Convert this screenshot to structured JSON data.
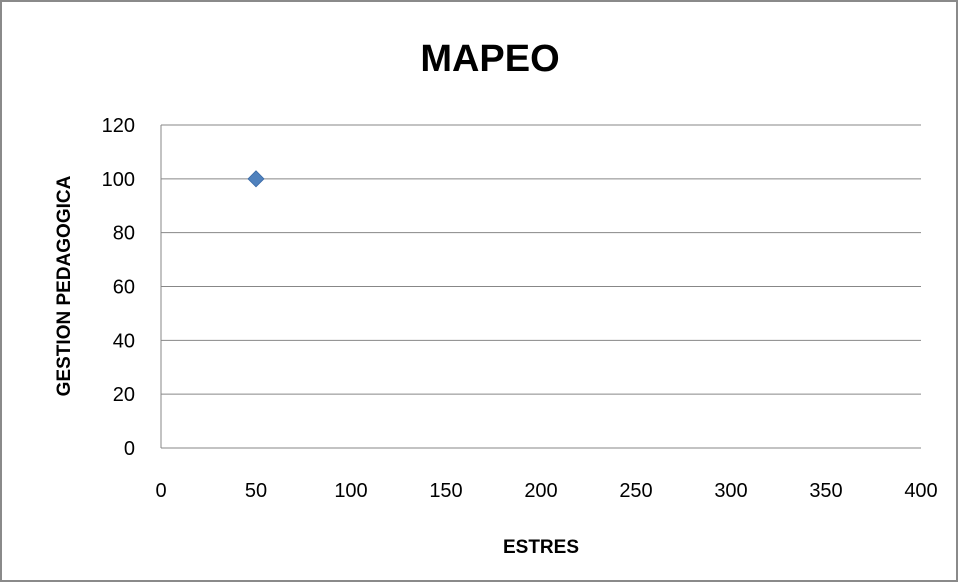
{
  "chart_data": {
    "type": "scatter",
    "title": "MAPEO",
    "xlabel": "ESTRES",
    "ylabel": "GESTION PEDAGOGICA",
    "xlim": [
      0,
      400
    ],
    "ylim": [
      0,
      120
    ],
    "x_ticks": [
      "0",
      "50",
      "100",
      "150",
      "200",
      "250",
      "300",
      "350",
      "400"
    ],
    "y_ticks": [
      "0",
      "20",
      "40",
      "60",
      "80",
      "100",
      "120"
    ],
    "grid": "horizontal",
    "legend": "none",
    "series": [
      {
        "x": [
          50
        ],
        "y": [
          100
        ],
        "marker": "diamond",
        "color": "#4F81BD"
      }
    ],
    "colors": {
      "gridline": "#878787",
      "axis": "#878787",
      "point": "#4F81BD"
    }
  }
}
